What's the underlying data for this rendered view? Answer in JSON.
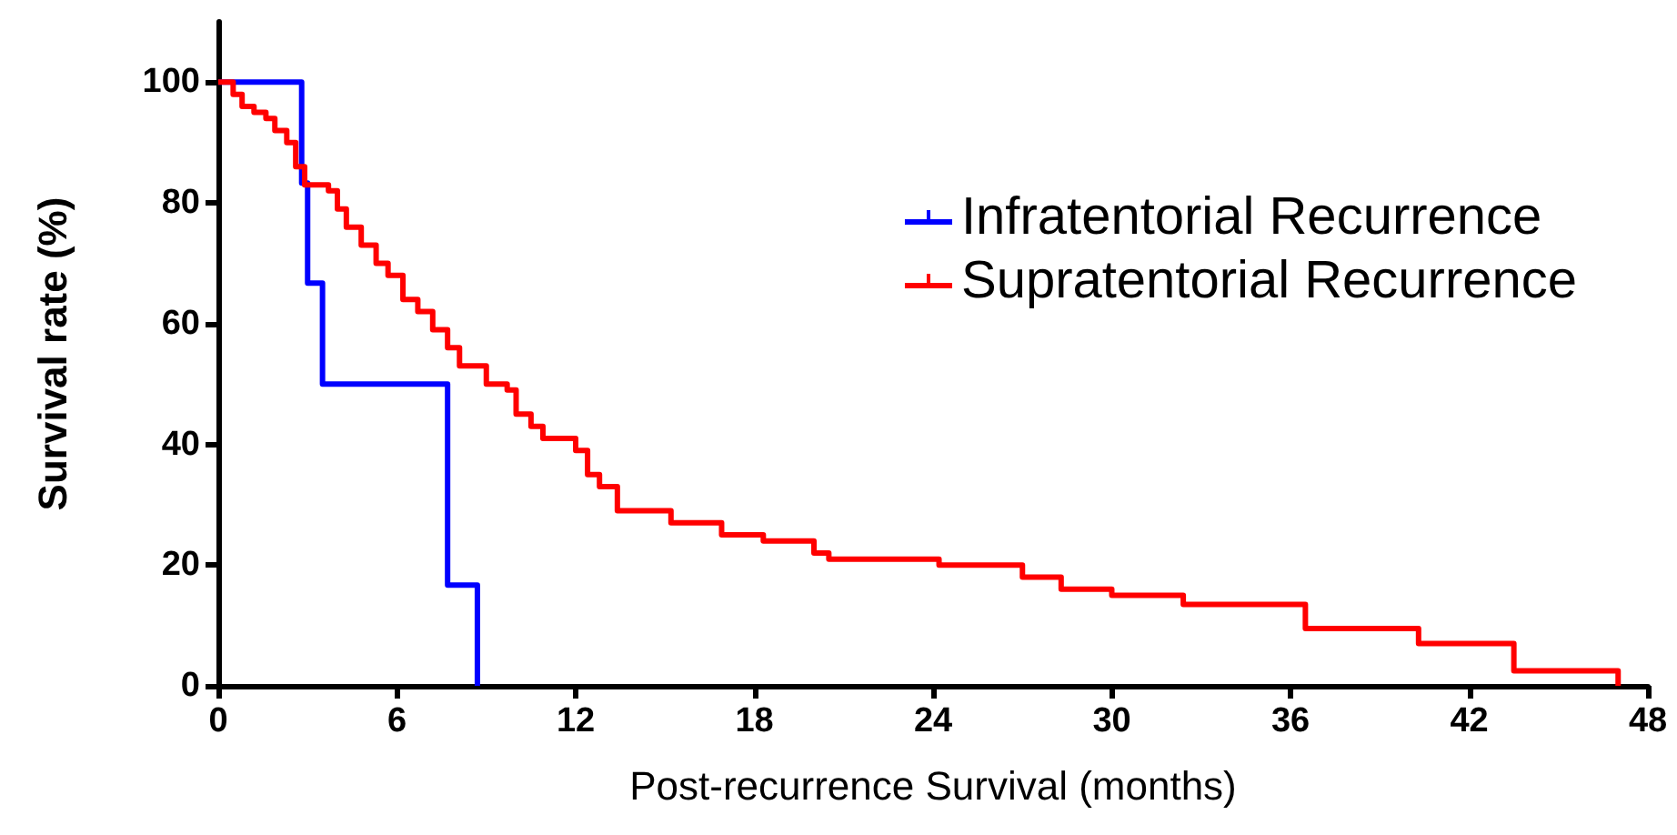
{
  "chart_data": {
    "type": "step",
    "xlabel": "Post-recurrence Survival (months)",
    "ylabel": "Survival rate (%)",
    "xlim": [
      0,
      48
    ],
    "xticks": [
      0,
      6,
      12,
      18,
      24,
      30,
      36,
      42,
      48
    ],
    "ylim": [
      0,
      110
    ],
    "yticks": [
      0,
      20,
      40,
      60,
      80,
      100
    ],
    "grid": false,
    "legend": "top right",
    "line_style": "solid",
    "series": [
      {
        "name": "Infratentorial Recurrence",
        "color": "#0000ff",
        "x": [
          0,
          2.8,
          3.0,
          3.5,
          7.7,
          8.7
        ],
        "values": [
          100,
          83.3,
          66.7,
          50,
          16.7,
          0
        ]
      },
      {
        "name": "Supratentorial Recurrence",
        "color": "#ff0000",
        "x": [
          0,
          0.5,
          0.8,
          1.2,
          1.6,
          1.9,
          2.3,
          2.6,
          2.9,
          3.7,
          4.0,
          4.3,
          4.8,
          5.3,
          5.7,
          6.2,
          6.7,
          7.2,
          7.7,
          8.1,
          9.0,
          9.7,
          10.0,
          10.5,
          10.9,
          12.0,
          12.4,
          12.8,
          13.4,
          15.2,
          16.9,
          18.3,
          20.0,
          20.5,
          24.2,
          27.0,
          28.3,
          30.0,
          32.4,
          36.5,
          40.3,
          43.5,
          47.0
        ],
        "values": [
          100,
          98,
          96,
          95,
          94,
          92,
          90,
          86,
          83,
          82,
          79,
          76,
          73,
          70,
          68,
          64,
          62,
          59,
          56,
          53,
          50,
          49,
          45,
          43,
          41,
          39,
          35,
          33,
          29,
          27,
          25,
          24,
          22,
          21,
          20,
          18,
          16,
          15,
          13.5,
          9.5,
          7,
          2.5,
          0
        ]
      }
    ]
  }
}
